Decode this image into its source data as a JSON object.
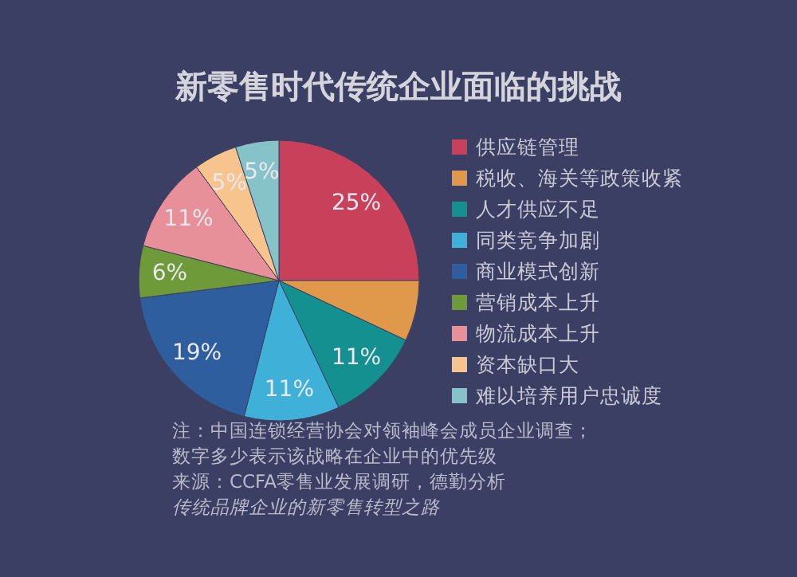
{
  "chart_data": {
    "type": "pie",
    "title": "新零售时代传统企业面临的挑战",
    "categories": [
      "供应链管理",
      "税收、海关等政策收紧",
      "人才供应不足",
      "同类竞争加剧",
      "商业模式创新",
      "营销成本上升",
      "物流成本上升",
      "资本缺口大",
      "难以培养用户忠诚度"
    ],
    "values": [
      25,
      7,
      11,
      11,
      19,
      6,
      11,
      5,
      5
    ],
    "value_labels": [
      "25%",
      null,
      "11%",
      "11%",
      "19%",
      "6%",
      "11%",
      "5%",
      "5%"
    ],
    "colors": [
      "#c9405a",
      "#e0994a",
      "#13908f",
      "#3fb0d8",
      "#2f5e9e",
      "#6f9a3a",
      "#e8909a",
      "#f8c48e",
      "#86c3c8"
    ],
    "legend": "right",
    "annotations": [
      "注：中国连锁经营协会对领袖峰会成员企业调查；",
      "数字多少表示该战略在企业中的优先级",
      "来源：CCFA零售业发展调研，德勤分析",
      "传统品牌企业的新零售转型之路"
    ]
  }
}
